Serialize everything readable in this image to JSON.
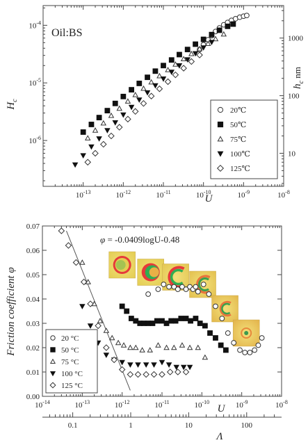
{
  "chart_data": [
    {
      "type": "scatter",
      "annotation": "Oil:BS",
      "xlabel": "U",
      "ylabel": "H",
      "ylabel_sub": "c",
      "y2label": "h",
      "y2label_sub": "c",
      "y2label_unit": "nm",
      "xscale": "log",
      "yscale": "log",
      "xlim": [
        1e-14,
        1e-08
      ],
      "ylim": [
        1.6e-07,
        0.00022
      ],
      "xticks": [
        {
          "value": 1e-13,
          "mant": "10",
          "exp": "-13"
        },
        {
          "value": 1e-12,
          "mant": "10",
          "exp": "-12"
        },
        {
          "value": 1e-11,
          "mant": "10",
          "exp": "-11"
        },
        {
          "value": 1e-10,
          "mant": "10",
          "exp": "-10"
        },
        {
          "value": 1e-09,
          "mant": "10",
          "exp": "-9"
        },
        {
          "value": 1e-08,
          "mant": "10",
          "exp": "-8"
        }
      ],
      "yticks": [
        {
          "value": 1e-06,
          "mant": "10",
          "exp": "-6"
        },
        {
          "value": 1e-05,
          "mant": "10",
          "exp": "-5"
        },
        {
          "value": 0.0001,
          "mant": "10",
          "exp": "-4"
        }
      ],
      "y2ticks": [
        {
          "value": 6e-07,
          "label": "10"
        },
        {
          "value": 6e-06,
          "label": "100"
        },
        {
          "value": 6e-05,
          "label": "1000"
        }
      ],
      "legend_position": "right",
      "series": [
        {
          "name": "20℃",
          "marker": "circle-open",
          "x": [
            8e-11,
            1e-10,
            1.3e-10,
            1.6e-10,
            2e-10,
            2.5e-10,
            3.2e-10,
            4e-10,
            5e-10,
            6.3e-10,
            8e-10,
            1e-09,
            1.2e-09
          ],
          "y": [
            3.8e-05,
            4.6e-05,
            5.6e-05,
            6.6e-05,
            7.8e-05,
            9e-05,
            0.000102,
            0.000112,
            0.000122,
            0.00013,
            0.000138,
            0.000144,
            0.000148
          ]
        },
        {
          "name": "50℃",
          "marker": "square-filled",
          "x": [
            1e-13,
            1.6e-13,
            2.5e-13,
            4e-13,
            6.3e-13,
            1e-12,
            1.6e-12,
            2.5e-12,
            4e-12,
            6.3e-12,
            1e-11,
            1.6e-11,
            2.5e-11,
            4e-11,
            6.3e-11,
            1e-10,
            1.6e-10,
            2.5e-10,
            4e-10,
            5.5e-10
          ],
          "y": [
            1.4e-06,
            1.9e-06,
            2.5e-06,
            3.3e-06,
            4.4e-06,
            5.8e-06,
            7.6e-06,
            9.8e-06,
            1.25e-05,
            1.6e-05,
            2e-05,
            2.5e-05,
            3.1e-05,
            3.8e-05,
            4.7e-05,
            5.7e-05,
            6.9e-05,
            8.2e-05,
            9.6e-05,
            0.000105
          ]
        },
        {
          "name": "75℃",
          "marker": "triangle-open",
          "x": [
            1.3e-13,
            2e-13,
            3.2e-13,
            5e-13,
            8e-13,
            1.3e-12,
            2e-12,
            3.2e-12,
            5e-12,
            8e-12,
            1.3e-11,
            2e-11,
            3.2e-11,
            5e-11,
            8e-11,
            1.3e-10,
            2e-10,
            3.2e-10
          ],
          "y": [
            1.1e-06,
            1.5e-06,
            2e-06,
            2.7e-06,
            3.6e-06,
            4.8e-06,
            6.2e-06,
            8e-06,
            1.03e-05,
            1.32e-05,
            1.68e-05,
            2.1e-05,
            2.6e-05,
            3.2e-05,
            3.9e-05,
            4.8e-05,
            5.8e-05,
            7e-05
          ]
        },
        {
          "name": "100℃",
          "marker": "triangle-down-filled",
          "x": [
            6.3e-14,
            1e-13,
            1.6e-13,
            2.5e-13,
            4e-13,
            6.3e-13,
            1e-12,
            1.6e-12,
            2.5e-12,
            4e-12,
            6.3e-12,
            1e-11,
            1.6e-11,
            2.5e-11,
            4e-11,
            6.3e-11,
            1e-10,
            1.6e-10
          ],
          "y": [
            3.8e-07,
            5.5e-07,
            7.8e-07,
            1.08e-06,
            1.5e-06,
            2.05e-06,
            2.8e-06,
            3.8e-06,
            5.1e-06,
            6.8e-06,
            9e-06,
            1.18e-05,
            1.55e-05,
            2e-05,
            2.55e-05,
            3.25e-05,
            4.1e-05,
            5.1e-05
          ]
        },
        {
          "name": "125℃",
          "marker": "diamond-open",
          "x": [
            1.3e-13,
            2e-13,
            3.2e-13,
            5e-13,
            8e-13,
            1.3e-12,
            2e-12,
            3.2e-12,
            5e-12,
            8e-12,
            1.3e-11,
            2e-11,
            3.2e-11,
            5e-11,
            8e-11
          ],
          "y": [
            4.2e-07,
            6e-07,
            8.6e-07,
            1.2e-06,
            1.7e-06,
            2.35e-06,
            3.2e-06,
            4.4e-06,
            5.9e-06,
            7.9e-06,
            1.05e-05,
            1.38e-05,
            1.8e-05,
            2.35e-05,
            3.05e-05
          ]
        }
      ]
    },
    {
      "type": "scatter",
      "xlabel": "U",
      "ylabel": "Friction coefficient φ",
      "x2label": "Λ",
      "xscale": "log",
      "xlim": [
        1e-14,
        1e-08
      ],
      "ylim": [
        0,
        0.07
      ],
      "xticks": [
        {
          "value": 1e-14,
          "mant": "10",
          "exp": "-14"
        },
        {
          "value": 1e-13,
          "mant": "10",
          "exp": "-13"
        },
        {
          "value": 1e-12,
          "mant": "10",
          "exp": "-12"
        },
        {
          "value": 1e-11,
          "mant": "10",
          "exp": "-11"
        },
        {
          "value": 1e-10,
          "mant": "10",
          "exp": "-10"
        },
        {
          "value": 1e-09,
          "mant": "10",
          "exp": "-9"
        },
        {
          "value": 1e-08,
          "mant": "10",
          "exp": "-8"
        }
      ],
      "yticks": [
        {
          "value": 0,
          "label": "0.00"
        },
        {
          "value": 0.01,
          "label": "0.01"
        },
        {
          "value": 0.02,
          "label": "0.02"
        },
        {
          "value": 0.03,
          "label": "0.03"
        },
        {
          "value": 0.04,
          "label": "0.04"
        },
        {
          "value": 0.05,
          "label": "0.05"
        },
        {
          "value": 0.06,
          "label": "0.06"
        },
        {
          "value": 0.07,
          "label": "0.07"
        }
      ],
      "x2lim": [
        0.03,
        400
      ],
      "x2scale": "log",
      "x2ticks": [
        {
          "value": 0.1,
          "label": "0.1"
        },
        {
          "value": 1,
          "label": "1"
        },
        {
          "value": 10,
          "label": "10"
        },
        {
          "value": 100,
          "label": "100"
        }
      ],
      "fit_line": {
        "label_prefix": "φ",
        "label": " = -0.0409logU-0.48",
        "slope": -0.0409,
        "intercept": -0.48,
        "x_range": [
          4e-14,
          1.6e-12
        ]
      },
      "legend_position": "bottom-left",
      "series": [
        {
          "name": "20 °C",
          "marker": "circle-open",
          "x": [
            4.5e-12,
            8e-12,
            1.1e-11,
            1.5e-11,
            2e-11,
            2.5e-11,
            3.2e-11,
            4e-11,
            5e-11,
            6e-11,
            7e-11,
            8e-11,
            1.1e-10,
            1.5e-10,
            2.2e-10,
            3.2e-10,
            4.5e-10,
            6.3e-10,
            9e-10,
            1.2e-09,
            1.6e-09,
            2.1e-09,
            2.6e-09,
            3.2e-09
          ],
          "y": [
            0.042,
            0.044,
            0.046,
            0.045,
            0.045,
            0.044,
            0.045,
            0.044,
            0.045,
            0.044,
            0.045,
            0.043,
            0.046,
            0.042,
            0.037,
            0.032,
            0.026,
            0.022,
            0.019,
            0.018,
            0.018,
            0.019,
            0.021,
            0.024
          ]
        },
        {
          "name": "50 °C",
          "marker": "square-filled",
          "x": [
            1e-12,
            1.3e-12,
            1.7e-12,
            2.2e-12,
            2.8e-12,
            3.5e-12,
            4.5e-12,
            5.8e-12,
            7.5e-12,
            1e-11,
            1.3e-11,
            1.7e-11,
            2.2e-11,
            3e-11,
            4e-11,
            5.2e-11,
            7e-11,
            9e-11,
            1.2e-10,
            1.6e-10,
            2.2e-10,
            3e-10,
            4e-10
          ],
          "y": [
            0.037,
            0.035,
            0.032,
            0.031,
            0.03,
            0.03,
            0.03,
            0.03,
            0.031,
            0.031,
            0.03,
            0.031,
            0.031,
            0.032,
            0.032,
            0.031,
            0.032,
            0.03,
            0.029,
            0.026,
            0.024,
            0.021,
            0.019
          ]
        },
        {
          "name": "75 °C",
          "marker": "triangle-open",
          "x": [
            1e-13,
            1.4e-13,
            2e-13,
            2.8e-13,
            4e-13,
            5.6e-13,
            8e-13,
            1.1e-12,
            1.6e-12,
            2.2e-12,
            3.2e-12,
            5e-12,
            8e-12,
            1.3e-11,
            2e-11,
            3.2e-11,
            5e-11,
            8e-11,
            1.2e-10
          ],
          "y": [
            0.055,
            0.047,
            0.038,
            0.031,
            0.027,
            0.024,
            0.022,
            0.021,
            0.02,
            0.02,
            0.019,
            0.019,
            0.021,
            0.02,
            0.02,
            0.021,
            0.02,
            0.02,
            0.016
          ]
        },
        {
          "name": "100 °C",
          "marker": "triangle-down-filled",
          "x": [
            1e-13,
            1.6e-13,
            2.5e-13,
            4e-13,
            6.3e-13,
            1e-12,
            1.6e-12,
            2.5e-12,
            4e-12,
            6.3e-12,
            1e-11,
            1.5e-11,
            2.3e-11,
            3.5e-11,
            5e-11
          ],
          "y": [
            0.037,
            0.029,
            0.022,
            0.017,
            0.015,
            0.014,
            0.013,
            0.013,
            0.013,
            0.013,
            0.014,
            0.013,
            0.012,
            0.012,
            0.012
          ]
        },
        {
          "name": "125 °C",
          "marker": "diamond-open",
          "x": [
            3e-14,
            4.5e-14,
            7e-14,
            1.1e-13,
            1.6e-13,
            2.5e-13,
            4e-13,
            6.3e-13,
            1e-12,
            1.6e-12,
            2.5e-12,
            4e-12,
            6.3e-12,
            1e-11,
            1.6e-11,
            2.5e-11,
            4e-11
          ],
          "y": [
            0.068,
            0.062,
            0.055,
            0.047,
            0.038,
            0.029,
            0.02,
            0.015,
            0.011,
            0.009,
            0.009,
            0.009,
            0.009,
            0.009,
            0.01,
            0.01,
            0.01
          ]
        }
      ],
      "inset_images": [
        {
          "name": "interference-image-1",
          "x": 1e-12,
          "y": 0.054,
          "colors": [
            "#e3cd52",
            "#e63a3a",
            "#2fae52"
          ],
          "pattern": "ring"
        },
        {
          "name": "interference-image-2",
          "x": 5.2e-12,
          "y": 0.051,
          "colors": [
            "#e3cd52",
            "#e63a3a",
            "#2fae52"
          ],
          "pattern": "crescent"
        },
        {
          "name": "interference-image-3",
          "x": 2.2e-11,
          "y": 0.049,
          "colors": [
            "#e3c652",
            "#e63a3a",
            "#2fae52"
          ],
          "pattern": "horseshoe"
        },
        {
          "name": "interference-image-4",
          "x": 1.05e-10,
          "y": 0.046,
          "colors": [
            "#e3c04e",
            "#e8743c",
            "#3aa04e"
          ],
          "pattern": "horseshoe-thin"
        },
        {
          "name": "interference-image-5",
          "x": 3.8e-10,
          "y": 0.036,
          "colors": [
            "#e3b84c",
            "#e8743c",
            "#3aa04e"
          ],
          "pattern": "horseshoe-small"
        },
        {
          "name": "interference-image-6",
          "x": 1.3e-09,
          "y": 0.026,
          "colors": [
            "#e3b24a",
            "#e8883c",
            "#3a9a4e"
          ],
          "pattern": "dot"
        }
      ]
    }
  ]
}
